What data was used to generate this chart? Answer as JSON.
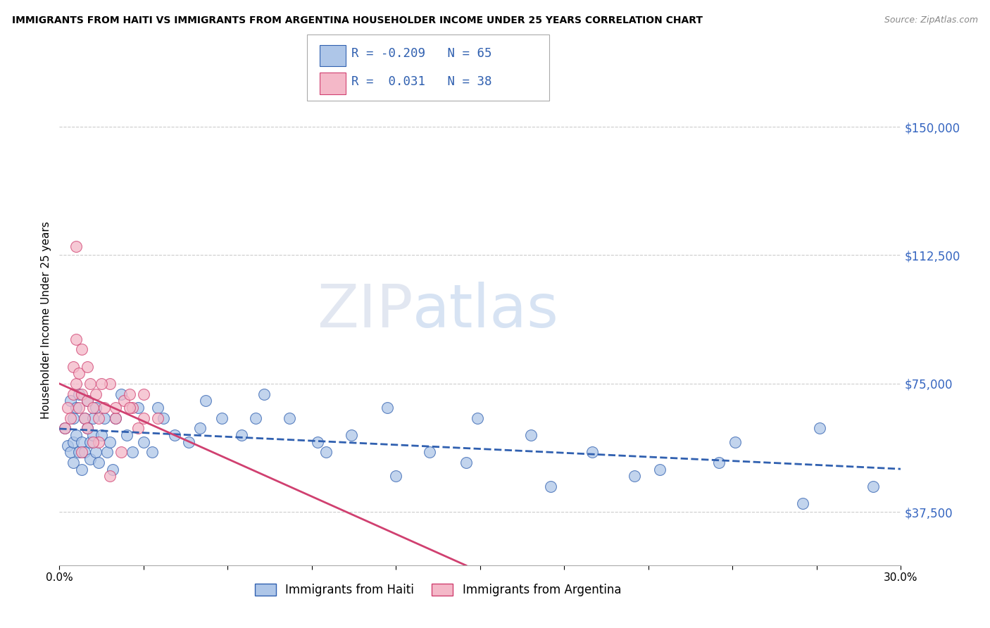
{
  "title": "IMMIGRANTS FROM HAITI VS IMMIGRANTS FROM ARGENTINA HOUSEHOLDER INCOME UNDER 25 YEARS CORRELATION CHART",
  "source": "Source: ZipAtlas.com",
  "ylabel": "Householder Income Under 25 years",
  "xlim": [
    0.0,
    0.3
  ],
  "ylim": [
    22000,
    165000
  ],
  "yticks": [
    37500,
    75000,
    112500,
    150000
  ],
  "ytick_labels": [
    "$37,500",
    "$75,000",
    "$112,500",
    "$150,000"
  ],
  "xticks": [
    0.0,
    0.03,
    0.06,
    0.09,
    0.12,
    0.15,
    0.18,
    0.21,
    0.24,
    0.27,
    0.3
  ],
  "xtick_labels": [
    "0.0%",
    "",
    "",
    "",
    "",
    "",
    "",
    "",
    "",
    "",
    "30.0%"
  ],
  "haiti_R": -0.209,
  "haiti_N": 65,
  "argentina_R": 0.031,
  "argentina_N": 38,
  "haiti_color": "#aec6e8",
  "argentina_color": "#f4b8c8",
  "haiti_line_color": "#3060b0",
  "argentina_line_color": "#d04070",
  "watermark_zip": "ZIP",
  "watermark_atlas": "atlas",
  "legend_haiti_label": "Immigrants from Haiti",
  "legend_argentina_label": "Immigrants from Argentina",
  "haiti_x": [
    0.002,
    0.003,
    0.004,
    0.004,
    0.005,
    0.005,
    0.005,
    0.006,
    0.006,
    0.007,
    0.007,
    0.008,
    0.008,
    0.009,
    0.009,
    0.01,
    0.01,
    0.011,
    0.011,
    0.012,
    0.012,
    0.013,
    0.013,
    0.014,
    0.015,
    0.016,
    0.017,
    0.018,
    0.019,
    0.02,
    0.022,
    0.024,
    0.026,
    0.028,
    0.03,
    0.033,
    0.037,
    0.041,
    0.046,
    0.052,
    0.058,
    0.065,
    0.073,
    0.082,
    0.092,
    0.104,
    0.117,
    0.132,
    0.149,
    0.168,
    0.19,
    0.214,
    0.241,
    0.271,
    0.035,
    0.05,
    0.07,
    0.095,
    0.12,
    0.145,
    0.175,
    0.205,
    0.235,
    0.265,
    0.29
  ],
  "haiti_y": [
    62000,
    57000,
    70000,
    55000,
    65000,
    58000,
    52000,
    60000,
    68000,
    55000,
    72000,
    58000,
    50000,
    65000,
    55000,
    70000,
    62000,
    58000,
    53000,
    65000,
    60000,
    55000,
    68000,
    52000,
    60000,
    65000,
    55000,
    58000,
    50000,
    65000,
    72000,
    60000,
    55000,
    68000,
    58000,
    55000,
    65000,
    60000,
    58000,
    70000,
    65000,
    60000,
    72000,
    65000,
    58000,
    60000,
    68000,
    55000,
    65000,
    60000,
    55000,
    50000,
    58000,
    62000,
    68000,
    62000,
    65000,
    55000,
    48000,
    52000,
    45000,
    48000,
    52000,
    40000,
    45000
  ],
  "argentina_x": [
    0.002,
    0.003,
    0.004,
    0.005,
    0.005,
    0.006,
    0.006,
    0.007,
    0.007,
    0.008,
    0.008,
    0.009,
    0.01,
    0.01,
    0.011,
    0.012,
    0.013,
    0.014,
    0.016,
    0.018,
    0.02,
    0.023,
    0.026,
    0.03,
    0.035,
    0.01,
    0.015,
    0.02,
    0.025,
    0.03,
    0.022,
    0.018,
    0.014,
    0.028,
    0.025,
    0.012,
    0.008,
    0.006
  ],
  "argentina_y": [
    62000,
    68000,
    65000,
    72000,
    80000,
    75000,
    88000,
    68000,
    78000,
    72000,
    85000,
    65000,
    70000,
    62000,
    75000,
    68000,
    72000,
    65000,
    68000,
    75000,
    65000,
    70000,
    68000,
    72000,
    65000,
    80000,
    75000,
    68000,
    72000,
    65000,
    55000,
    48000,
    58000,
    62000,
    68000,
    58000,
    55000,
    115000
  ]
}
